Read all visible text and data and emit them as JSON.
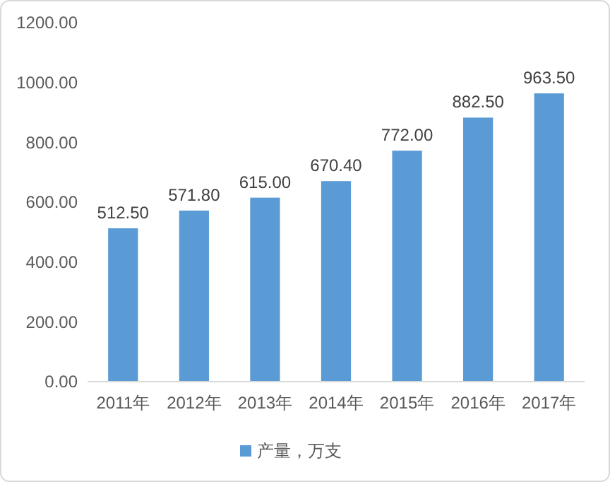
{
  "chart_data": {
    "type": "bar",
    "categories": [
      "2011年",
      "2012年",
      "2013年",
      "2014年",
      "2015年",
      "2016年",
      "2017年"
    ],
    "series": [
      {
        "name": "产量，万支",
        "color": "#5b9bd5",
        "values": [
          512.5,
          571.8,
          615,
          670.4,
          772,
          882.5,
          963.5
        ]
      }
    ],
    "value_labels": [
      "512.50",
      "571.80",
      "615.00",
      "670.40",
      "772.00",
      "882.50",
      "963.50"
    ],
    "ylim": [
      0,
      1200
    ],
    "yticks": [
      {
        "value": 0,
        "label": "0.00"
      },
      {
        "value": 200,
        "label": "200.00"
      },
      {
        "value": 400,
        "label": "400.00"
      },
      {
        "value": 600,
        "label": "600.00"
      },
      {
        "value": 800,
        "label": "800.00"
      },
      {
        "value": 1000,
        "label": "1000.00"
      },
      {
        "value": 1200,
        "label": "1200.00"
      }
    ],
    "grid": false,
    "legend": "bottom"
  }
}
